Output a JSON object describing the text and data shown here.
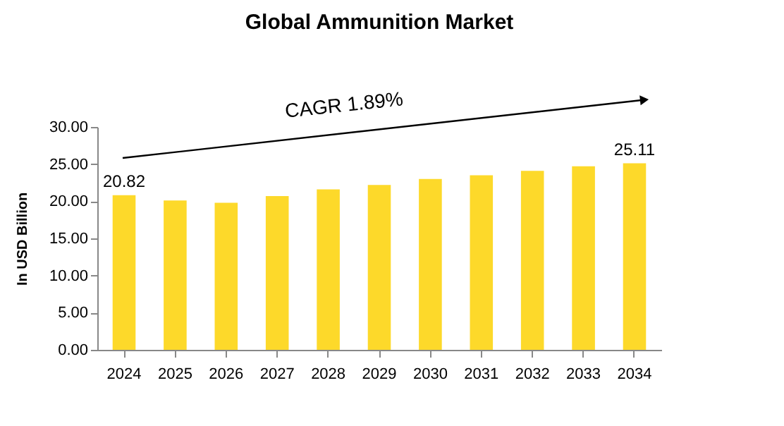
{
  "chart_data": {
    "type": "bar",
    "title": "Global Ammunition Market",
    "ylabel": "In USD Billion",
    "categories": [
      "2024",
      "2025",
      "2026",
      "2027",
      "2028",
      "2029",
      "2030",
      "2031",
      "2032",
      "2033",
      "2034"
    ],
    "values": [
      20.82,
      20.1,
      19.8,
      20.7,
      21.6,
      22.2,
      23.0,
      23.5,
      24.1,
      24.7,
      25.11
    ],
    "value_labels": [
      "20.82",
      null,
      null,
      null,
      null,
      null,
      null,
      null,
      null,
      null,
      "25.11"
    ],
    "color": "#fdd92a",
    "ylim": [
      0,
      30
    ],
    "yticks": [
      {
        "value": 0,
        "label": "0.00"
      },
      {
        "value": 5,
        "label": "5.00"
      },
      {
        "value": 10,
        "label": "10.00"
      },
      {
        "value": 15,
        "label": "15.00"
      },
      {
        "value": 20,
        "label": "20.00"
      },
      {
        "value": 25,
        "label": "25.00"
      },
      {
        "value": 30,
        "label": "30.00"
      }
    ],
    "annotations": [
      "CAGR 1.89%"
    ],
    "grid": false
  }
}
